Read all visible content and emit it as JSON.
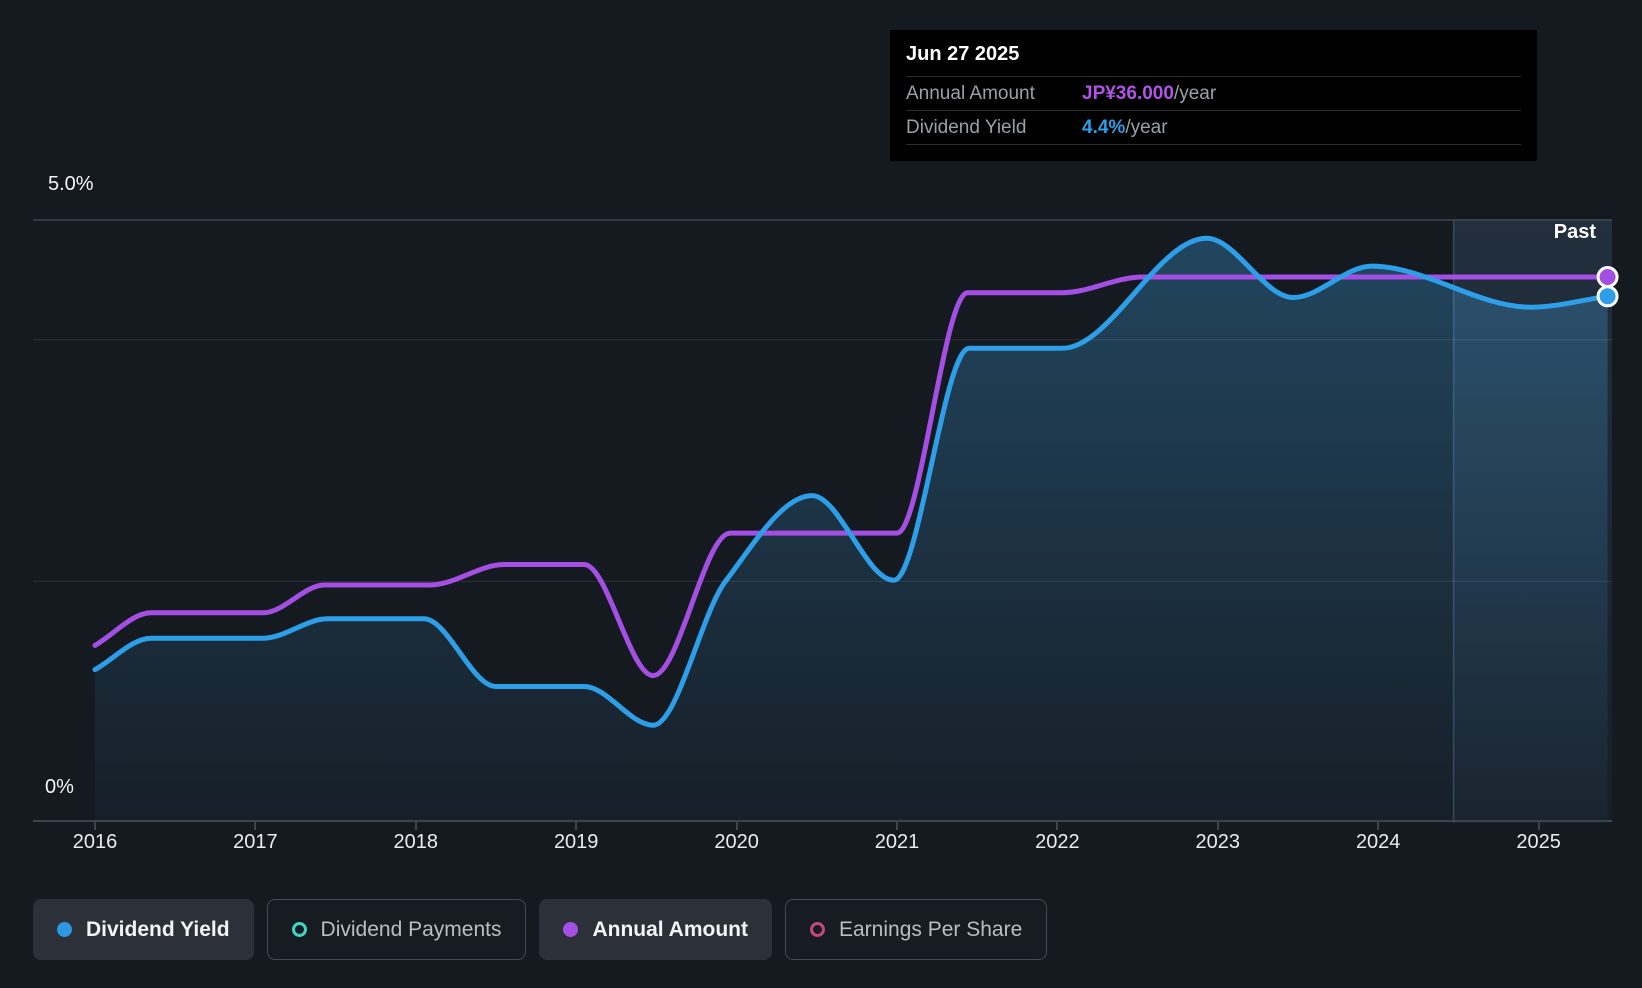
{
  "tooltip": {
    "date": "Jun 27 2025",
    "rows": [
      {
        "label": "Annual Amount",
        "value": "JP¥36.000",
        "suffix": "/year",
        "color": "#b253e8"
      },
      {
        "label": "Dividend Yield",
        "value": "4.4%",
        "suffix": "/year",
        "color": "#2d9fe8"
      }
    ]
  },
  "chart_data": {
    "type": "line",
    "title": "Dividend history chart",
    "y_axis": {
      "unit": "%",
      "min": 0,
      "max": 5,
      "top_label": "5.0%",
      "bottom_label": "0%",
      "gridline_values": [
        4,
        2
      ]
    },
    "x_axis": {
      "min": 2016,
      "max": 2025.44,
      "ticks": [
        2016,
        2017,
        2018,
        2019,
        2020,
        2021,
        2022,
        2023,
        2024,
        2025
      ],
      "tick_labels": [
        "2016",
        "2017",
        "2018",
        "2019",
        "2020",
        "2021",
        "2022",
        "2023",
        "2024",
        "2025"
      ]
    },
    "past_label": "Past",
    "past_band_start": 2024.47,
    "series": [
      {
        "name": "Dividend Yield",
        "color": "#2d9fe8",
        "area": true,
        "end_dot": true,
        "points": [
          [
            2016.0,
            1.27
          ],
          [
            2016.35,
            1.53
          ],
          [
            2017.05,
            1.53
          ],
          [
            2017.45,
            1.69
          ],
          [
            2018.05,
            1.69
          ],
          [
            2018.5,
            1.13
          ],
          [
            2019.05,
            1.13
          ],
          [
            2019.48,
            0.81
          ],
          [
            2019.93,
            2.0
          ],
          [
            2020.47,
            2.71
          ],
          [
            2020.98,
            2.01
          ],
          [
            2021.45,
            3.93
          ],
          [
            2022.03,
            3.93
          ],
          [
            2022.93,
            4.84
          ],
          [
            2023.47,
            4.35
          ],
          [
            2023.96,
            4.61
          ],
          [
            2024.95,
            4.27
          ],
          [
            2025.43,
            4.36
          ]
        ]
      },
      {
        "name": "Annual Amount",
        "color": "#a44fe3",
        "area": false,
        "end_dot": true,
        "points": [
          [
            2016.0,
            1.47
          ],
          [
            2016.35,
            1.74
          ],
          [
            2017.05,
            1.74
          ],
          [
            2017.43,
            1.97
          ],
          [
            2018.09,
            1.97
          ],
          [
            2018.55,
            2.14
          ],
          [
            2019.05,
            2.14
          ],
          [
            2019.48,
            1.22
          ],
          [
            2019.96,
            2.4
          ],
          [
            2021.0,
            2.4
          ],
          [
            2021.44,
            4.39
          ],
          [
            2022.03,
            4.39
          ],
          [
            2022.53,
            4.52
          ],
          [
            2025.43,
            4.52
          ]
        ]
      }
    ]
  },
  "legend": [
    {
      "label": "Dividend Yield",
      "color": "#2e97e3",
      "active": true,
      "filled": true
    },
    {
      "label": "Dividend Payments",
      "color": "#41d6c2",
      "active": false,
      "filled": false
    },
    {
      "label": "Annual Amount",
      "color": "#a44fe3",
      "active": true,
      "filled": true
    },
    {
      "label": "Earnings Per Share",
      "color": "#c2477e",
      "active": false,
      "filled": false
    }
  ]
}
